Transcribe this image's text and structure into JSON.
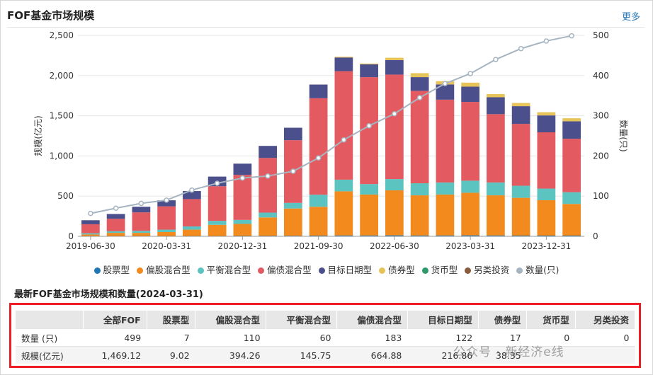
{
  "header": {
    "title": "FOF基金市场规模",
    "more_label": "更多"
  },
  "colors": {
    "stock": "#1f77b4",
    "equity_mixed": "#f28a1e",
    "balanced_mixed": "#5cc4c0",
    "bond_mixed": "#e35b60",
    "target_date": "#4b4f8c",
    "bond": "#e7c45a",
    "money": "#2e9a6a",
    "alternative": "#8a5b3c",
    "count_line": "#a6b5c2"
  },
  "legend": [
    {
      "label": "股票型",
      "color": "#1f77b4"
    },
    {
      "label": "偏股混合型",
      "color": "#f28a1e"
    },
    {
      "label": "平衡混合型",
      "color": "#5cc4c0"
    },
    {
      "label": "偏债混合型",
      "color": "#e35b60"
    },
    {
      "label": "目标日期型",
      "color": "#4b4f8c"
    },
    {
      "label": "债券型",
      "color": "#e7c45a"
    },
    {
      "label": "货币型",
      "color": "#2e9a6a"
    },
    {
      "label": "另类投资",
      "color": "#8a5b3c"
    },
    {
      "label": "数量(只)",
      "color": "#a6b5c2"
    }
  ],
  "chart_data": {
    "type": "bar",
    "stacked": true,
    "ylabel": "规模(亿元)",
    "y2label": "数量(只)",
    "ylim": [
      0,
      2500
    ],
    "y2lim": [
      0,
      500
    ],
    "yticks": [
      "0",
      "500",
      "1,000",
      "1,500",
      "2,000",
      "2,500"
    ],
    "y2ticks": [
      "0",
      "100",
      "200",
      "300",
      "400",
      "500"
    ],
    "categories": [
      "2019-06-30",
      "2019-09-30",
      "2019-12-31",
      "2020-03-31",
      "2020-06-30",
      "2020-09-30",
      "2020-12-31",
      "2021-03-31",
      "2021-06-30",
      "2021-09-30",
      "2021-12-31",
      "2022-03-31",
      "2022-06-30",
      "2022-09-30",
      "2022-12-31",
      "2023-03-31",
      "2023-06-30",
      "2023-09-30",
      "2023-12-31",
      "2024-03-31"
    ],
    "xticks_shown": [
      "2019-06-30",
      "2020-03-31",
      "2020-12-31",
      "2021-09-30",
      "2022-06-30",
      "2023-03-31",
      "2023-12-31"
    ],
    "series": [
      {
        "name": "股票型",
        "values": [
          3,
          3,
          3,
          3,
          3,
          3,
          4,
          5,
          6,
          8,
          10,
          10,
          12,
          10,
          10,
          12,
          10,
          9,
          9,
          9
        ]
      },
      {
        "name": "偏股混合型",
        "values": [
          20,
          40,
          40,
          50,
          80,
          140,
          150,
          230,
          340,
          360,
          550,
          510,
          560,
          500,
          510,
          530,
          500,
          470,
          440,
          394
        ]
      },
      {
        "name": "平衡混合型",
        "values": [
          15,
          20,
          25,
          30,
          40,
          50,
          50,
          60,
          70,
          150,
          145,
          130,
          140,
          150,
          150,
          150,
          160,
          150,
          145,
          146
        ]
      },
      {
        "name": "偏债混合型",
        "values": [
          112,
          155,
          230,
          290,
          340,
          430,
          560,
          680,
          780,
          1200,
          1350,
          1330,
          1300,
          1150,
          1030,
          980,
          850,
          770,
          700,
          665
        ]
      },
      {
        "name": "目标日期型",
        "values": [
          50,
          60,
          70,
          75,
          100,
          120,
          140,
          150,
          155,
          170,
          170,
          160,
          180,
          170,
          190,
          190,
          210,
          220,
          210,
          217
        ]
      },
      {
        "name": "债券型",
        "values": [
          0,
          0,
          0,
          0,
          0,
          0,
          0,
          0,
          0,
          0,
          10,
          10,
          30,
          50,
          40,
          50,
          40,
          40,
          40,
          38
        ]
      },
      {
        "name": "货币型",
        "values": [
          0,
          0,
          0,
          0,
          0,
          0,
          0,
          0,
          0,
          0,
          0,
          0,
          0,
          0,
          0,
          0,
          0,
          0,
          0,
          0
        ]
      },
      {
        "name": "另类投资",
        "values": [
          0,
          0,
          0,
          0,
          0,
          0,
          0,
          0,
          0,
          0,
          0,
          0,
          0,
          0,
          0,
          0,
          0,
          0,
          0,
          0
        ]
      }
    ],
    "line": {
      "name": "数量(只)",
      "axis": "right",
      "values": [
        57,
        70,
        82,
        90,
        115,
        132,
        145,
        150,
        162,
        195,
        240,
        275,
        305,
        345,
        380,
        405,
        440,
        467,
        486,
        499
      ]
    }
  },
  "table": {
    "subtitle": "最新FOF基金市场规模和数量(2024-03-31)",
    "headers": [
      "",
      "全部FOF",
      "股票型",
      "偏股混合型",
      "平衡混合型",
      "偏债混合型",
      "目标日期型",
      "债券型",
      "货币型",
      "另类投资"
    ],
    "rows": [
      [
        "数量 (只)",
        "499",
        "7",
        "110",
        "60",
        "183",
        "122",
        "17",
        "0",
        "0"
      ],
      [
        "规模(亿元)",
        "1,469.12",
        "9.02",
        "394.26",
        "145.75",
        "664.88",
        "216.86",
        "38.35",
        "",
        ""
      ]
    ]
  },
  "watermark": "公众号 · 新经济e线"
}
